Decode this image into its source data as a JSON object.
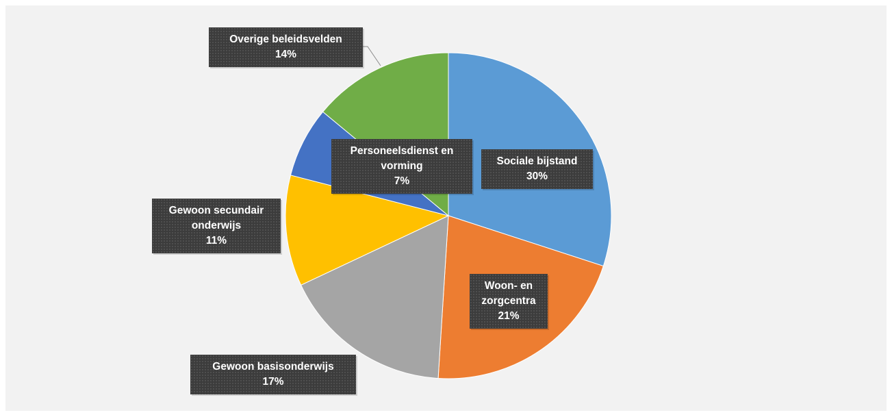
{
  "chart_data": {
    "type": "pie",
    "categories": [
      "Sociale bijstand",
      "Woon- en zorgcentra",
      "Gewoon basisonderwijs",
      "Gewoon secundair onderwijs",
      "Personeelsdienst en vorming",
      "Overige beleidsvelden"
    ],
    "values": [
      30,
      21,
      17,
      11,
      7,
      14
    ],
    "value_labels": [
      "30%",
      "21%",
      "17%",
      "11%",
      "7%",
      "14%"
    ],
    "colors": [
      "#5b9bd5",
      "#ed7d31",
      "#a5a5a5",
      "#ffc000",
      "#4472c4",
      "#70ad47"
    ]
  }
}
